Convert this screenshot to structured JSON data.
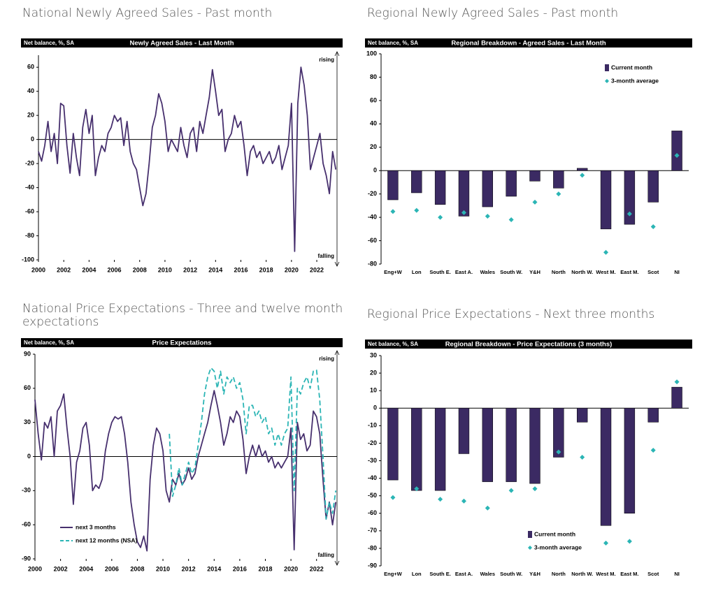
{
  "chart_data": [
    {
      "type": "line",
      "heading": "National Newly Agreed Sales - Past month",
      "title": "Newly Agreed Sales - Last Month",
      "ylabel": "Net balance, %, SA",
      "annotations": [
        "rising",
        "falling"
      ],
      "x": [
        2000,
        2000.25,
        2000.5,
        2000.75,
        2001,
        2001.25,
        2001.5,
        2001.75,
        2002,
        2002.25,
        2002.5,
        2002.75,
        2003,
        2003.25,
        2003.5,
        2003.75,
        2004,
        2004.25,
        2004.5,
        2004.75,
        2005,
        2005.25,
        2005.5,
        2005.75,
        2006,
        2006.25,
        2006.5,
        2006.75,
        2007,
        2007.25,
        2007.5,
        2007.75,
        2008,
        2008.25,
        2008.5,
        2008.75,
        2009,
        2009.25,
        2009.5,
        2009.75,
        2010,
        2010.25,
        2010.5,
        2010.75,
        2011,
        2011.25,
        2011.5,
        2011.75,
        2012,
        2012.25,
        2012.5,
        2012.75,
        2013,
        2013.25,
        2013.5,
        2013.75,
        2014,
        2014.25,
        2014.5,
        2014.75,
        2015,
        2015.25,
        2015.5,
        2015.75,
        2016,
        2016.25,
        2016.5,
        2016.75,
        2017,
        2017.25,
        2017.5,
        2017.75,
        2018,
        2018.25,
        2018.5,
        2018.75,
        2019,
        2019.25,
        2019.5,
        2019.75,
        2020,
        2020.25,
        2020.5,
        2020.75,
        2021,
        2021.25,
        2021.5,
        2021.75,
        2022,
        2022.25,
        2022.5,
        2022.75,
        2023,
        2023.25,
        2023.5
      ],
      "values": [
        -10,
        -18,
        -5,
        15,
        -10,
        5,
        -20,
        30,
        28,
        -5,
        -28,
        5,
        -15,
        -30,
        10,
        25,
        5,
        20,
        -30,
        -15,
        -5,
        -10,
        5,
        10,
        20,
        15,
        18,
        -5,
        15,
        -10,
        -20,
        -25,
        -40,
        -55,
        -45,
        -20,
        10,
        20,
        38,
        30,
        15,
        -10,
        0,
        -5,
        -10,
        10,
        -5,
        -15,
        5,
        10,
        -10,
        15,
        5,
        20,
        35,
        58,
        40,
        20,
        25,
        -10,
        0,
        5,
        20,
        10,
        15,
        -5,
        -30,
        -10,
        -5,
        -15,
        -10,
        -20,
        -15,
        -10,
        -20,
        -15,
        -5,
        -25,
        -15,
        -5,
        30,
        -93,
        30,
        60,
        45,
        20,
        -25,
        -15,
        -5,
        5,
        -20,
        -30,
        -45,
        -10,
        -25
      ],
      "color": "#47306e",
      "xlim": [
        2000,
        2023.6
      ],
      "xticks": [
        2000,
        2002,
        2004,
        2006,
        2008,
        2010,
        2012,
        2014,
        2016,
        2018,
        2020,
        2022
      ],
      "ylim": [
        -100,
        70
      ],
      "yticks": [
        -100,
        -80,
        -60,
        -40,
        -20,
        0,
        20,
        40,
        60
      ]
    },
    {
      "type": "bar",
      "heading": "Regional Newly Agreed Sales - Past month",
      "title": "Regional Breakdown - Agreed Sales - Last Month",
      "ylabel": "Net balance, %, SA",
      "categories": [
        "Eng+W",
        "Lon",
        "South E.",
        "East A.",
        "Wales",
        "South W.",
        "Y&H",
        "North",
        "North W.",
        "West M.",
        "East M.",
        "Scot",
        "NI"
      ],
      "series": [
        {
          "name": "Current month",
          "color": "#3b2a63",
          "mark": "bar",
          "values": [
            -25,
            -19,
            -29,
            -39,
            -31,
            -22,
            -9,
            -15,
            2,
            -50,
            -46,
            -27,
            34
          ]
        },
        {
          "name": "3-month average",
          "color": "#2bb5b5",
          "mark": "diamond",
          "values": [
            -35,
            -34,
            -40,
            -36,
            -39,
            -42,
            -27,
            -20,
            -4,
            -70,
            -37,
            -48,
            13
          ]
        }
      ],
      "legend": "upper right",
      "ylim": [
        -80,
        100
      ],
      "yticks": [
        -80,
        -60,
        -40,
        -20,
        0,
        20,
        40,
        60,
        80,
        100
      ]
    },
    {
      "type": "line",
      "heading": "National Price Expectations - Three and twelve month expectations",
      "title": "Price Expectations",
      "ylabel": "Net balance, %, SA",
      "annotations": [
        "rising",
        "falling"
      ],
      "x": [
        2000,
        2000.25,
        2000.5,
        2000.75,
        2001,
        2001.25,
        2001.5,
        2001.75,
        2002,
        2002.25,
        2002.5,
        2002.75,
        2003,
        2003.25,
        2003.5,
        2003.75,
        2004,
        2004.25,
        2004.5,
        2004.75,
        2005,
        2005.25,
        2005.5,
        2005.75,
        2006,
        2006.25,
        2006.5,
        2006.75,
        2007,
        2007.25,
        2007.5,
        2007.75,
        2008,
        2008.25,
        2008.5,
        2008.75,
        2009,
        2009.25,
        2009.5,
        2009.75,
        2010,
        2010.25,
        2010.5,
        2010.75,
        2011,
        2011.25,
        2011.5,
        2011.75,
        2012,
        2012.25,
        2012.5,
        2012.75,
        2013,
        2013.25,
        2013.5,
        2013.75,
        2014,
        2014.25,
        2014.5,
        2014.75,
        2015,
        2015.25,
        2015.5,
        2015.75,
        2016,
        2016.25,
        2016.5,
        2016.75,
        2017,
        2017.25,
        2017.5,
        2017.75,
        2018,
        2018.25,
        2018.5,
        2018.75,
        2019,
        2019.25,
        2019.5,
        2019.75,
        2020,
        2020.25,
        2020.5,
        2020.75,
        2021,
        2021.25,
        2021.5,
        2021.75,
        2022,
        2022.25,
        2022.5,
        2022.75,
        2023,
        2023.25,
        2023.5
      ],
      "series": [
        {
          "name": "next 3 months",
          "color": "#47306e",
          "line_style": "solid",
          "values": [
            50,
            20,
            -3,
            30,
            25,
            35,
            0,
            40,
            45,
            55,
            25,
            0,
            -42,
            -5,
            5,
            25,
            30,
            10,
            -30,
            -25,
            -28,
            -20,
            5,
            20,
            30,
            35,
            33,
            35,
            20,
            -5,
            -40,
            -60,
            -75,
            -80,
            -70,
            -83,
            -20,
            10,
            25,
            20,
            5,
            -30,
            -40,
            -20,
            -25,
            -15,
            -25,
            -20,
            -10,
            -20,
            -15,
            0,
            10,
            20,
            30,
            45,
            58,
            45,
            30,
            10,
            20,
            35,
            30,
            40,
            35,
            15,
            -15,
            0,
            10,
            0,
            10,
            0,
            5,
            -5,
            0,
            -10,
            -5,
            -10,
            -5,
            0,
            25,
            -82,
            30,
            15,
            20,
            5,
            10,
            40,
            35,
            20,
            -20,
            -55,
            -40,
            -60,
            -40
          ]
        },
        {
          "name": "next 12 months (NSA)",
          "color": "#2bb5b5",
          "line_style": "dashed",
          "values": [
            null,
            null,
            null,
            null,
            null,
            null,
            null,
            null,
            null,
            null,
            null,
            null,
            null,
            null,
            null,
            null,
            null,
            null,
            null,
            null,
            null,
            null,
            null,
            null,
            null,
            null,
            null,
            null,
            null,
            null,
            null,
            null,
            null,
            null,
            null,
            null,
            null,
            null,
            null,
            null,
            null,
            null,
            20,
            -35,
            -25,
            -10,
            -25,
            -15,
            -5,
            -15,
            -10,
            10,
            30,
            55,
            70,
            78,
            75,
            60,
            75,
            55,
            70,
            65,
            70,
            60,
            65,
            50,
            20,
            45,
            45,
            35,
            40,
            30,
            35,
            20,
            25,
            10,
            20,
            10,
            20,
            25,
            70,
            -30,
            60,
            55,
            65,
            70,
            60,
            75,
            76,
            50,
            0,
            -55,
            -40,
            -50,
            -30
          ]
        }
      ],
      "legend": "lower left",
      "xlim": [
        2000,
        2023.6
      ],
      "xticks": [
        2000,
        2002,
        2004,
        2006,
        2008,
        2010,
        2012,
        2014,
        2016,
        2018,
        2020,
        2022
      ],
      "ylim": [
        -90,
        90
      ],
      "yticks": [
        -90,
        -60,
        -30,
        0,
        30,
        60,
        90
      ]
    },
    {
      "type": "bar",
      "heading": "Regional Price Expectations - Next three months",
      "title": "Regional Breakdown - Price Expectations (3 months)",
      "ylabel": "Net balance, %, SA",
      "categories": [
        "Eng+W",
        "Lon",
        "South E.",
        "East A.",
        "Wales",
        "South W.",
        "Y&H",
        "North",
        "North W.",
        "West M.",
        "East M.",
        "Scot",
        "NI"
      ],
      "series": [
        {
          "name": "Current month",
          "color": "#3b2a63",
          "mark": "bar",
          "values": [
            -41,
            -47,
            -47,
            -26,
            -42,
            -42,
            -43,
            -28,
            -8,
            -67,
            -60,
            -8,
            12
          ]
        },
        {
          "name": "3-month average",
          "color": "#2bb5b5",
          "mark": "diamond",
          "values": [
            -51,
            -46,
            -52,
            -53,
            -57,
            -47,
            -46,
            -25,
            -28,
            -77,
            -76,
            -24,
            15
          ]
        }
      ],
      "legend": "lower center",
      "ylim": [
        -90,
        30
      ],
      "yticks": [
        -90,
        -80,
        -70,
        -60,
        -50,
        -40,
        -30,
        -20,
        -10,
        0,
        10,
        20,
        30
      ]
    }
  ]
}
